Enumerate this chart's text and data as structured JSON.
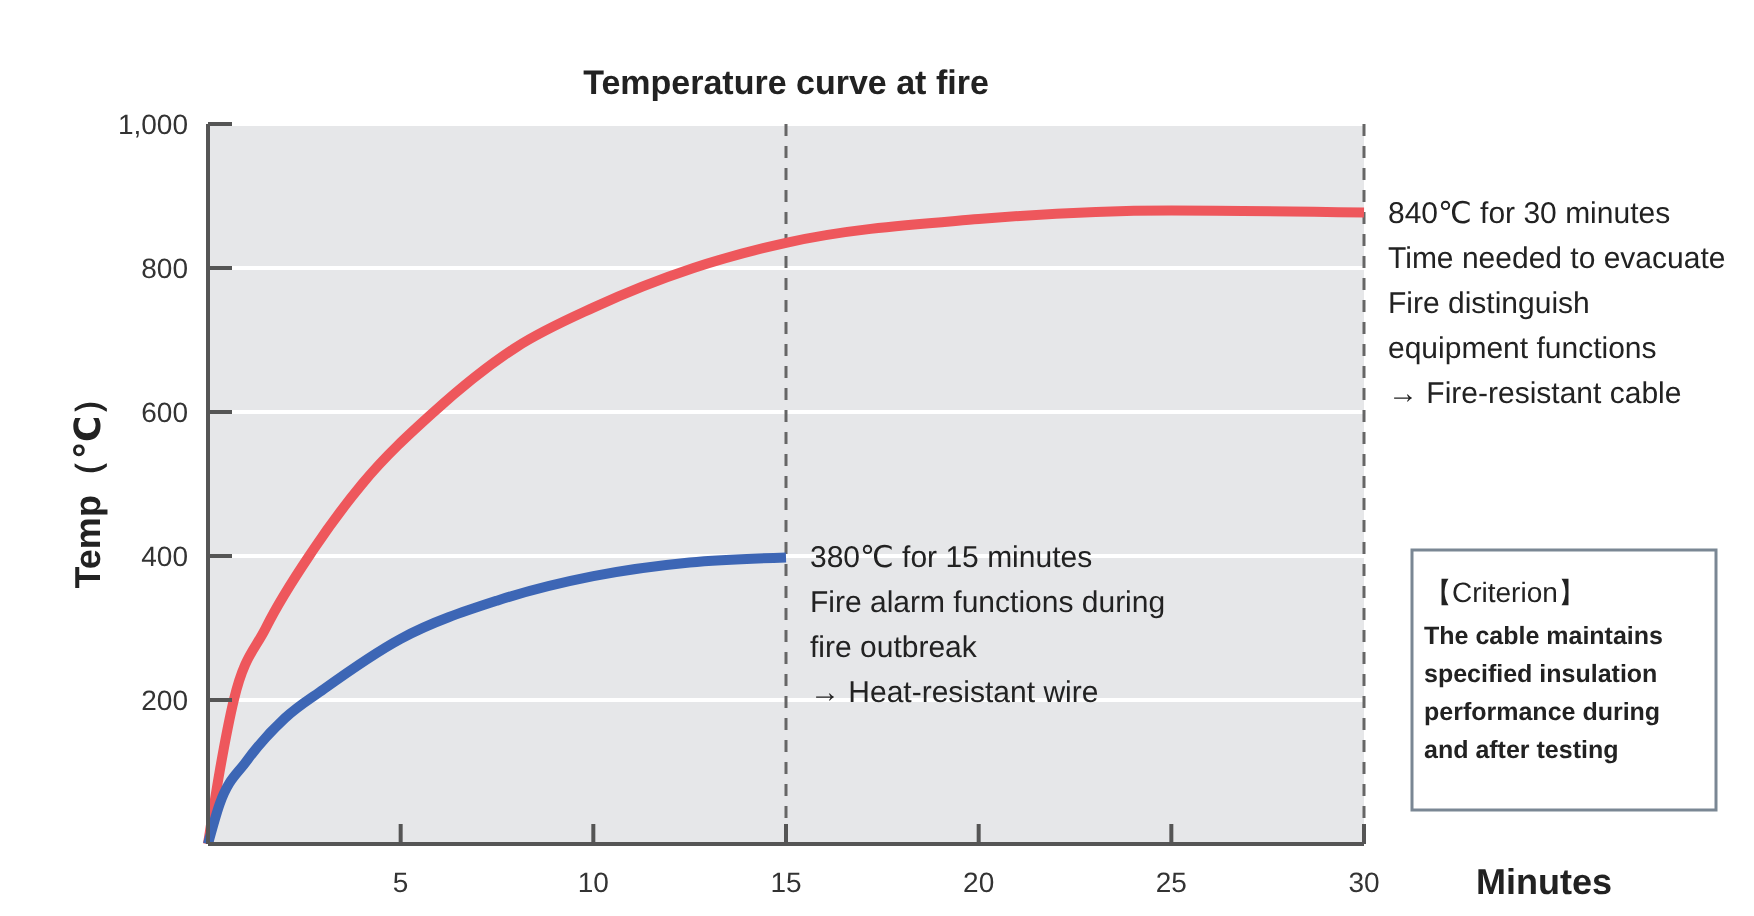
{
  "chart_data": {
    "type": "line",
    "title": "Temperature curve at fire",
    "xlabel": "Minutes",
    "ylabel": "Temp（℃）",
    "xlim": [
      0,
      30
    ],
    "xticks": [
      5,
      10,
      15,
      20,
      25,
      30
    ],
    "ylim": [
      0,
      1000
    ],
    "yticks": [
      200,
      400,
      600,
      800,
      {
        "value": 1000,
        "label": "1,000"
      }
    ],
    "grid": "y",
    "marker": "none",
    "line_style": "solid",
    "series": [
      {
        "color": "#ee575c",
        "x": [
          0,
          0.3,
          0.67,
          1.5,
          2.75,
          4,
          5.86,
          8,
          10,
          12.6,
          15,
          20,
          25,
          30
        ],
        "values": [
          0,
          100,
          200,
          300,
          410,
          500,
          600,
          690,
          745,
          800,
          835,
          868,
          880,
          877
        ]
      },
      {
        "color": "#3d66b5",
        "x": [
          0,
          0.3,
          1,
          2,
          3,
          5,
          7.5,
          10,
          12.5,
          15
        ],
        "values": [
          0,
          55,
          115,
          175,
          215,
          285,
          338,
          372,
          391,
          398
        ]
      }
    ],
    "ref_lines": [
      {
        "axis": "x",
        "value": 15,
        "line_style": "dashed",
        "color": "#666666"
      },
      {
        "axis": "x",
        "value": 30,
        "line_style": "dashed",
        "color": "#666666"
      }
    ],
    "annotations": [
      {
        "text": "380℃ for 15 minutes\nFire alarm functions during\nfire outbreak\n→ Heat-resistant wire",
        "x": 15,
        "y": 398
      },
      {
        "text": "840℃ for 30 minutes\nTime needed to evacuate\nFire distinguish\nequipment functions\n→ Fire-resistant cable",
        "x": 30,
        "y": 877
      },
      "【Criterion】\nThe cable maintains\nspecified insulation\nperformance during\nand after testing"
    ]
  }
}
